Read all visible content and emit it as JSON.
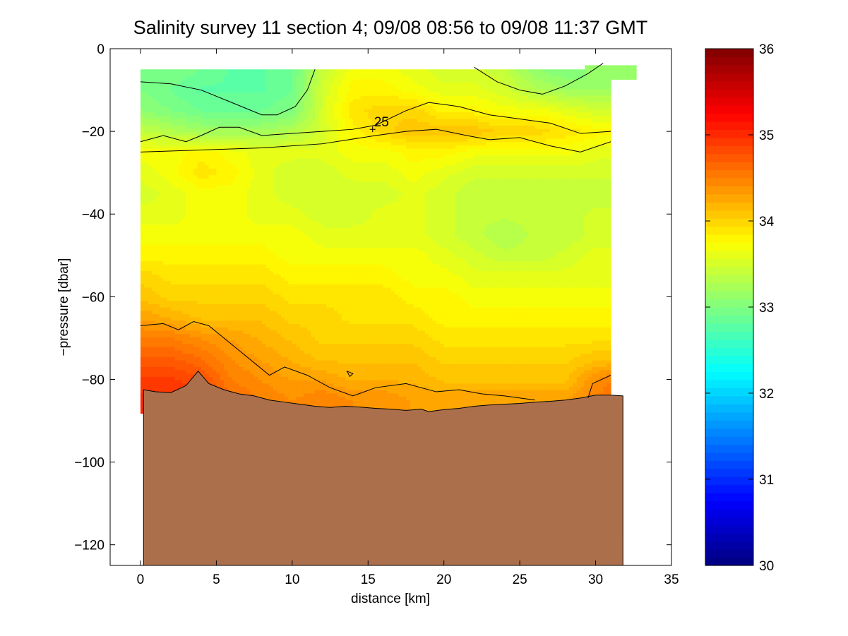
{
  "chart_data": {
    "type": "heatmap",
    "title": "Salinity survey 11 section 4; 09/08 08:56 to 09/08 11:37 GMT",
    "xlabel": "distance [km]",
    "ylabel": "−pressure [dbar]",
    "xlim": [
      -2,
      35
    ],
    "ylim": [
      -125,
      0
    ],
    "xticks": [
      0,
      5,
      10,
      15,
      20,
      25,
      30,
      35
    ],
    "yticks": [
      0,
      -20,
      -40,
      -60,
      -80,
      -100,
      -120
    ],
    "ytick_labels": [
      "0",
      "−20",
      "−40",
      "−60",
      "−80",
      "−100",
      "−120"
    ],
    "colorbar": {
      "range": [
        30,
        36
      ],
      "ticks": [
        30,
        31,
        32,
        33,
        34,
        35,
        36
      ],
      "colormap": "jet"
    },
    "contour_label": "25",
    "seabed_color": "#ac6f4c",
    "salinity_grid": {
      "x": [
        0,
        2,
        4,
        6,
        8,
        10,
        12,
        14,
        16,
        18,
        20,
        22,
        24,
        26,
        28,
        30,
        31
      ],
      "depth": [
        5,
        10,
        15,
        20,
        25,
        30,
        35,
        40,
        45,
        50,
        55,
        60,
        65,
        70,
        75,
        80,
        85
      ],
      "values": [
        [
          33.0,
          33.0,
          32.9,
          32.8,
          32.8,
          32.9,
          33.4,
          33.7,
          33.7,
          33.6,
          33.5,
          33.5,
          33.4,
          33.1,
          33.0,
          33.0,
          33.0
        ],
        [
          33.0,
          32.9,
          32.8,
          32.8,
          32.8,
          32.9,
          33.5,
          33.8,
          33.8,
          33.7,
          33.6,
          33.6,
          33.5,
          33.3,
          33.2,
          33.2,
          33.2
        ],
        [
          33.1,
          33.0,
          32.9,
          32.9,
          32.9,
          33.0,
          33.5,
          33.9,
          34.0,
          34.0,
          33.8,
          33.8,
          33.7,
          33.7,
          33.6,
          33.5,
          33.5
        ],
        [
          33.4,
          33.3,
          33.2,
          33.2,
          33.2,
          33.3,
          33.5,
          33.8,
          34.0,
          34.1,
          34.1,
          34.1,
          34.0,
          34.0,
          33.9,
          33.8,
          33.8
        ],
        [
          33.7,
          33.7,
          33.8,
          33.7,
          33.6,
          33.6,
          33.6,
          33.7,
          33.7,
          33.8,
          33.8,
          33.7,
          33.7,
          33.7,
          33.7,
          33.6,
          33.6
        ],
        [
          33.6,
          33.7,
          33.9,
          33.8,
          33.6,
          33.5,
          33.5,
          33.6,
          33.6,
          33.7,
          33.6,
          33.5,
          33.5,
          33.5,
          33.5,
          33.5,
          33.5
        ],
        [
          33.5,
          33.6,
          33.7,
          33.7,
          33.6,
          33.5,
          33.5,
          33.5,
          33.5,
          33.6,
          33.5,
          33.4,
          33.4,
          33.4,
          33.4,
          33.4,
          33.4
        ],
        [
          33.6,
          33.6,
          33.7,
          33.7,
          33.6,
          33.6,
          33.5,
          33.5,
          33.6,
          33.6,
          33.5,
          33.4,
          33.4,
          33.4,
          33.4,
          33.5,
          33.5
        ],
        [
          33.7,
          33.7,
          33.7,
          33.7,
          33.7,
          33.7,
          33.6,
          33.6,
          33.6,
          33.6,
          33.5,
          33.4,
          33.3,
          33.4,
          33.4,
          33.5,
          33.5
        ],
        [
          33.8,
          33.8,
          33.8,
          33.8,
          33.8,
          33.7,
          33.7,
          33.7,
          33.7,
          33.7,
          33.6,
          33.5,
          33.4,
          33.4,
          33.5,
          33.6,
          33.6
        ],
        [
          34.0,
          33.9,
          33.9,
          33.9,
          33.9,
          33.8,
          33.8,
          33.8,
          33.8,
          33.7,
          33.7,
          33.6,
          33.6,
          33.6,
          33.6,
          33.6,
          33.6
        ],
        [
          34.1,
          34.0,
          34.0,
          34.0,
          34.0,
          33.9,
          33.9,
          33.9,
          33.9,
          33.8,
          33.8,
          33.7,
          33.7,
          33.7,
          33.7,
          33.7,
          33.7
        ],
        [
          34.3,
          34.2,
          34.1,
          34.1,
          34.1,
          34.0,
          34.0,
          33.9,
          33.9,
          33.9,
          33.8,
          33.8,
          33.8,
          33.8,
          33.8,
          33.8,
          33.8
        ],
        [
          34.5,
          34.5,
          34.4,
          34.3,
          34.2,
          34.1,
          34.0,
          34.0,
          34.0,
          34.0,
          33.9,
          33.9,
          33.9,
          33.9,
          33.9,
          33.9,
          33.9
        ],
        [
          34.7,
          34.7,
          34.6,
          34.4,
          34.3,
          34.2,
          34.1,
          34.1,
          34.1,
          34.1,
          34.0,
          34.0,
          34.0,
          34.0,
          34.0,
          34.1,
          34.1
        ],
        [
          34.9,
          34.9,
          34.8,
          34.5,
          34.4,
          34.3,
          34.3,
          34.2,
          34.2,
          34.2,
          34.1,
          34.1,
          34.1,
          34.1,
          34.1,
          34.4,
          34.5
        ],
        [
          35.0,
          35.0,
          34.9,
          34.6,
          34.5,
          34.4,
          34.5,
          34.4,
          34.4,
          34.3,
          34.3,
          34.3,
          34.3,
          34.3,
          34.3,
          34.5,
          34.6
        ]
      ]
    },
    "data_top_depth": 5,
    "data_right_edge_km": 31,
    "seabed_profile": [
      [
        0.2,
        -82.5
      ],
      [
        1.0,
        -83
      ],
      [
        2.0,
        -83.2
      ],
      [
        3.0,
        -81.5
      ],
      [
        3.8,
        -78
      ],
      [
        4.5,
        -81
      ],
      [
        5.5,
        -82.5
      ],
      [
        6.5,
        -83.5
      ],
      [
        7.5,
        -84
      ],
      [
        8.5,
        -85
      ],
      [
        9.5,
        -85.5
      ],
      [
        10.5,
        -86
      ],
      [
        11.5,
        -86.5
      ],
      [
        12.5,
        -86.8
      ],
      [
        13.5,
        -86.5
      ],
      [
        14.5,
        -86.7
      ],
      [
        15.5,
        -87
      ],
      [
        16.5,
        -87.2
      ],
      [
        17.5,
        -87.5
      ],
      [
        18.5,
        -87.2
      ],
      [
        19.0,
        -87.8
      ],
      [
        20.0,
        -87.3
      ],
      [
        21.0,
        -87
      ],
      [
        22.0,
        -86.5
      ],
      [
        23.0,
        -86.2
      ],
      [
        24.0,
        -86
      ],
      [
        25.0,
        -85.8
      ],
      [
        26.0,
        -85.5
      ],
      [
        27.0,
        -85.3
      ],
      [
        28.0,
        -85
      ],
      [
        29.0,
        -84.5
      ],
      [
        30.0,
        -83.8
      ],
      [
        31.0,
        -83.8
      ],
      [
        31.8,
        -84
      ]
    ],
    "contours": [
      [
        [
          0,
          -8
        ],
        [
          2,
          -8.5
        ],
        [
          4,
          -10
        ],
        [
          6,
          -13
        ],
        [
          8,
          -16
        ],
        [
          9,
          -16
        ],
        [
          10.2,
          -14
        ],
        [
          11,
          -10
        ],
        [
          11.5,
          -5
        ]
      ],
      [
        [
          0,
          -22.5
        ],
        [
          1.5,
          -21
        ],
        [
          3,
          -22.5
        ],
        [
          4,
          -21
        ],
        [
          5.2,
          -19
        ],
        [
          6.5,
          -19
        ],
        [
          8,
          -21
        ],
        [
          10,
          -20.5
        ],
        [
          12,
          -20
        ],
        [
          14,
          -19.5
        ],
        [
          15.5,
          -18.5
        ],
        [
          17.5,
          -15
        ],
        [
          19,
          -13
        ],
        [
          21,
          -14
        ],
        [
          23,
          -16
        ],
        [
          25,
          -17
        ],
        [
          27,
          -18
        ],
        [
          29,
          -20.5
        ],
        [
          31,
          -20
        ]
      ],
      [
        [
          0,
          -25
        ],
        [
          4,
          -24.5
        ],
        [
          8,
          -24
        ],
        [
          12,
          -23
        ],
        [
          15.5,
          -21
        ],
        [
          17.5,
          -20
        ],
        [
          19.5,
          -19.5
        ],
        [
          21.5,
          -21
        ],
        [
          23,
          -22
        ],
        [
          25,
          -21.5
        ],
        [
          27,
          -23.5
        ],
        [
          29,
          -25
        ],
        [
          31,
          -22.5
        ]
      ],
      [
        [
          22,
          -4.5
        ],
        [
          23.5,
          -8
        ],
        [
          25,
          -10
        ],
        [
          26.5,
          -11
        ],
        [
          28,
          -9
        ],
        [
          29.5,
          -6
        ],
        [
          30.5,
          -3.5
        ]
      ],
      [
        [
          0,
          -67
        ],
        [
          1.5,
          -66.5
        ],
        [
          2.5,
          -68
        ],
        [
          3.5,
          -66
        ],
        [
          4.5,
          -67
        ],
        [
          5.5,
          -70
        ],
        [
          6.5,
          -73
        ],
        [
          7.5,
          -76
        ],
        [
          8.5,
          -79
        ],
        [
          9.5,
          -77
        ],
        [
          11,
          -79
        ],
        [
          12.5,
          -82
        ],
        [
          14,
          -84
        ],
        [
          15.5,
          -82
        ],
        [
          17.5,
          -81
        ],
        [
          19.5,
          -83
        ],
        [
          21,
          -82.5
        ],
        [
          22.5,
          -83.5
        ],
        [
          24,
          -84
        ],
        [
          26,
          -85
        ]
      ],
      [
        [
          29.5,
          -84.5
        ],
        [
          29.8,
          -81
        ],
        [
          31,
          -79
        ]
      ],
      [
        [
          13.6,
          -78
        ],
        [
          14,
          -78.6
        ],
        [
          13.8,
          -79.3
        ],
        [
          13.6,
          -78
        ]
      ]
    ],
    "contour_label_position_km": [
      15.3,
      -19.5
    ]
  }
}
